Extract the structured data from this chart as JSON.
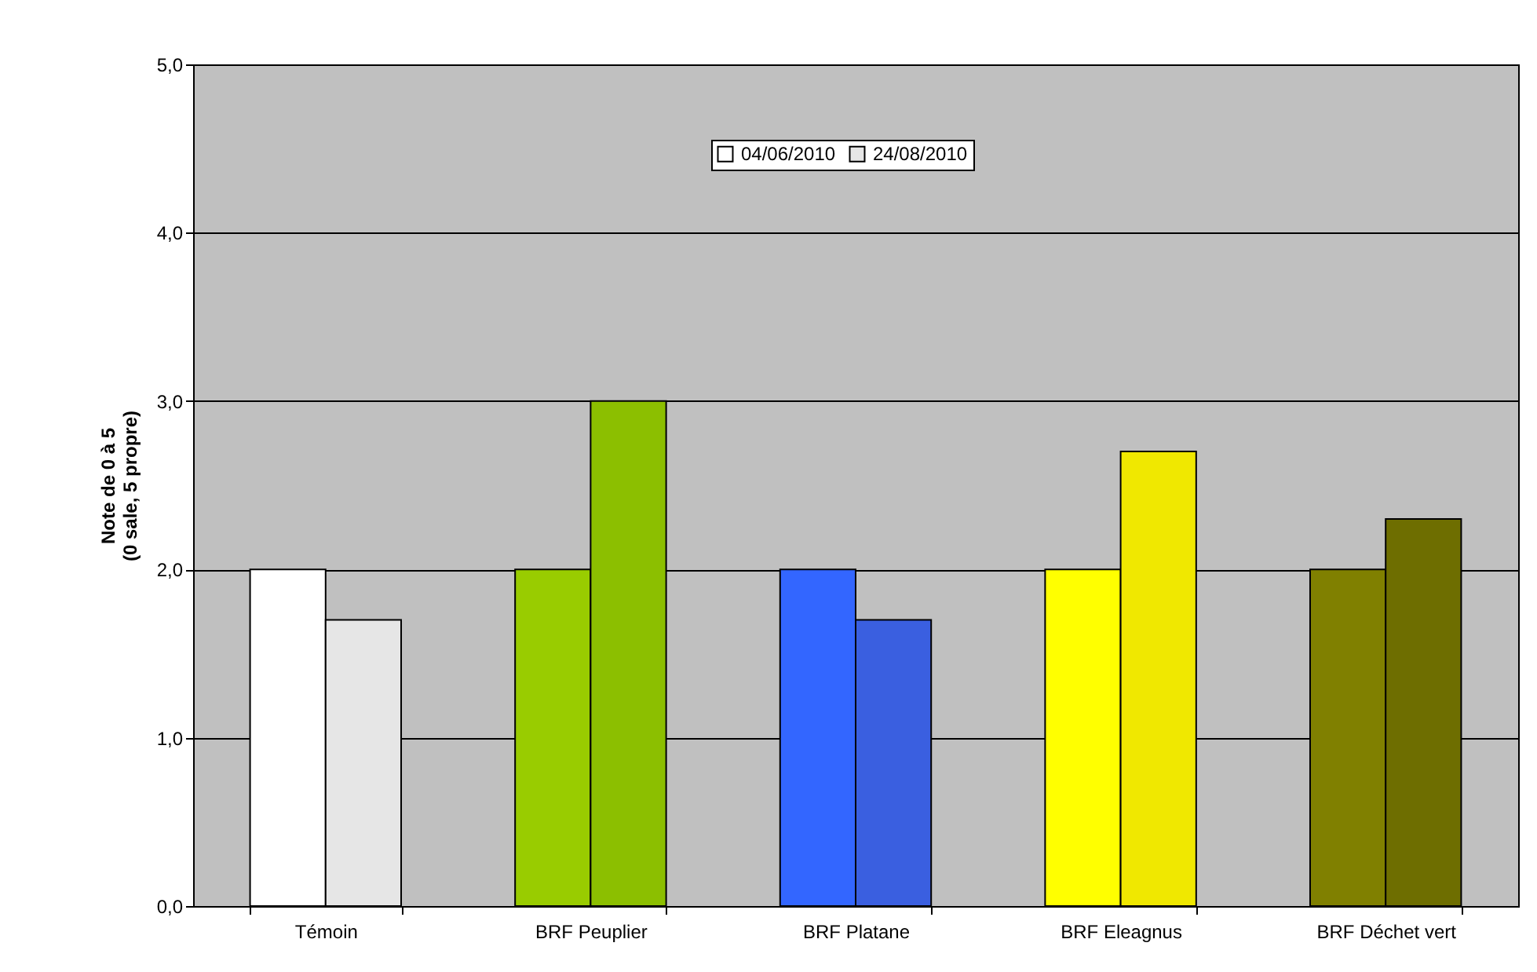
{
  "chart_data": {
    "type": "bar",
    "ylabel": "Note de 0 à 5\n(0 sale, 5 propre)",
    "categories": [
      "Témoin",
      "BRF Peuplier",
      "BRF Platane",
      "BRF Eleagnus",
      "BRF Déchet vert"
    ],
    "series": [
      {
        "name": "04/06/2010",
        "colors": [
          "#ffffff",
          "#99cc00",
          "#3366ff",
          "#ffff00",
          "#808000"
        ],
        "values": [
          2.0,
          2.0,
          2.0,
          2.0,
          2.0
        ]
      },
      {
        "name": "24/08/2010",
        "colors": [
          "#e6e6e6",
          "#8cbf00",
          "#3a5fe0",
          "#f0e800",
          "#6e6e00"
        ],
        "values": [
          1.7,
          3.0,
          1.7,
          2.7,
          2.3
        ]
      }
    ],
    "ylim": [
      0,
      5
    ],
    "yticks": [
      {
        "value": 0,
        "label": "0,0"
      },
      {
        "value": 1,
        "label": "1,0"
      },
      {
        "value": 2,
        "label": "2,0"
      },
      {
        "value": 3,
        "label": "3,0"
      },
      {
        "value": 4,
        "label": "4,0"
      },
      {
        "value": 5,
        "label": "5,0"
      }
    ],
    "grid": true,
    "legend": "top"
  }
}
